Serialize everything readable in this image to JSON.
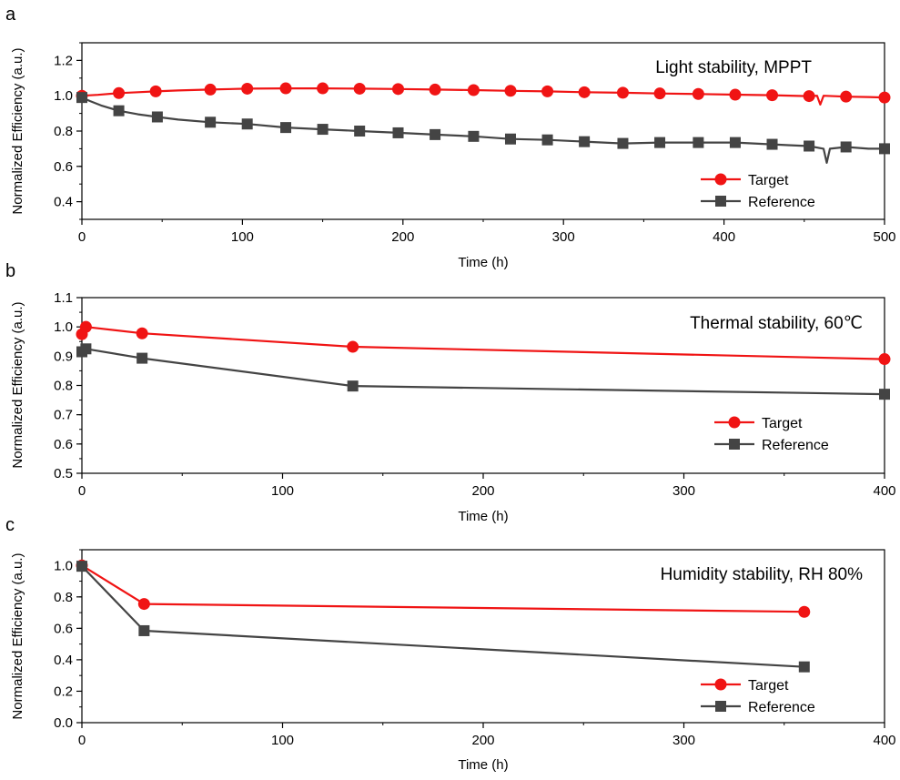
{
  "colors": {
    "target": "#f01414",
    "reference": "#444444",
    "axis": "#000000",
    "background": "#ffffff"
  },
  "chart_data": [
    {
      "type": "line",
      "panel_label": "a",
      "annotation": "Light stability, MPPT",
      "xlabel": "Time (h)",
      "ylabel": "Normalized Efficiency (a.u.)",
      "xlim": [
        0,
        500
      ],
      "ylim": [
        0.3,
        1.3
      ],
      "xticks": [
        0,
        100,
        200,
        300,
        400,
        500
      ],
      "yticks": [
        0.4,
        0.6,
        0.8,
        1.0,
        1.2
      ],
      "ytick_labels": [
        "0.4",
        "0.6",
        "0.8",
        "1.0",
        "1.2"
      ],
      "grid": false,
      "legend_position": "bottom-right",
      "series": [
        {
          "name": "Target",
          "color": "#f01414",
          "marker": "circle",
          "line": [
            [
              0,
              1.0
            ],
            [
              10,
              1.005
            ],
            [
              23,
              1.015
            ],
            [
              35,
              1.02
            ],
            [
              46,
              1.025
            ],
            [
              60,
              1.03
            ],
            [
              80,
              1.035
            ],
            [
              103,
              1.04
            ],
            [
              127,
              1.042
            ],
            [
              150,
              1.042
            ],
            [
              173,
              1.04
            ],
            [
              197,
              1.038
            ],
            [
              220,
              1.035
            ],
            [
              244,
              1.032
            ],
            [
              267,
              1.028
            ],
            [
              290,
              1.025
            ],
            [
              313,
              1.02
            ],
            [
              337,
              1.017
            ],
            [
              360,
              1.013
            ],
            [
              384,
              1.01
            ],
            [
              407,
              1.006
            ],
            [
              430,
              1.003
            ],
            [
              452,
              0.998
            ],
            [
              458,
              1.0
            ],
            [
              460,
              0.95
            ],
            [
              462,
              1.0
            ],
            [
              476,
              0.995
            ],
            [
              490,
              0.993
            ],
            [
              500,
              0.99
            ]
          ],
          "markers": [
            [
              0,
              1.0
            ],
            [
              23,
              1.015
            ],
            [
              46,
              1.025
            ],
            [
              80,
              1.035
            ],
            [
              103,
              1.04
            ],
            [
              127,
              1.042
            ],
            [
              150,
              1.042
            ],
            [
              173,
              1.04
            ],
            [
              197,
              1.038
            ],
            [
              220,
              1.035
            ],
            [
              244,
              1.032
            ],
            [
              267,
              1.028
            ],
            [
              290,
              1.025
            ],
            [
              313,
              1.02
            ],
            [
              337,
              1.017
            ],
            [
              360,
              1.013
            ],
            [
              384,
              1.01
            ],
            [
              407,
              1.006
            ],
            [
              430,
              1.003
            ],
            [
              453,
              0.998
            ],
            [
              476,
              0.995
            ],
            [
              500,
              0.99
            ]
          ]
        },
        {
          "name": "Reference",
          "color": "#444444",
          "marker": "square",
          "line": [
            [
              0,
              0.99
            ],
            [
              5,
              0.97
            ],
            [
              12,
              0.945
            ],
            [
              23,
              0.915
            ],
            [
              35,
              0.895
            ],
            [
              47,
              0.88
            ],
            [
              60,
              0.865
            ],
            [
              80,
              0.85
            ],
            [
              103,
              0.84
            ],
            [
              127,
              0.82
            ],
            [
              150,
              0.81
            ],
            [
              173,
              0.8
            ],
            [
              197,
              0.79
            ],
            [
              220,
              0.78
            ],
            [
              244,
              0.77
            ],
            [
              267,
              0.755
            ],
            [
              290,
              0.75
            ],
            [
              313,
              0.74
            ],
            [
              337,
              0.73
            ],
            [
              360,
              0.735
            ],
            [
              384,
              0.735
            ],
            [
              407,
              0.735
            ],
            [
              430,
              0.725
            ],
            [
              440,
              0.72
            ],
            [
              453,
              0.715
            ],
            [
              462,
              0.7
            ],
            [
              464,
              0.62
            ],
            [
              466,
              0.7
            ],
            [
              476,
              0.71
            ],
            [
              490,
              0.7
            ],
            [
              500,
              0.7
            ]
          ],
          "markers": [
            [
              0,
              0.99
            ],
            [
              23,
              0.915
            ],
            [
              47,
              0.88
            ],
            [
              80,
              0.85
            ],
            [
              103,
              0.84
            ],
            [
              127,
              0.82
            ],
            [
              150,
              0.81
            ],
            [
              173,
              0.8
            ],
            [
              197,
              0.79
            ],
            [
              220,
              0.78
            ],
            [
              244,
              0.77
            ],
            [
              267,
              0.755
            ],
            [
              290,
              0.75
            ],
            [
              313,
              0.74
            ],
            [
              337,
              0.73
            ],
            [
              360,
              0.735
            ],
            [
              384,
              0.735
            ],
            [
              407,
              0.735
            ],
            [
              430,
              0.725
            ],
            [
              453,
              0.715
            ],
            [
              476,
              0.71
            ],
            [
              500,
              0.7
            ]
          ]
        }
      ]
    },
    {
      "type": "line",
      "panel_label": "b",
      "annotation": "Thermal stability, 60℃",
      "xlabel": "Time (h)",
      "ylabel": "Normalized Efficiency (a.u.)",
      "xlim": [
        0,
        400
      ],
      "ylim": [
        0.5,
        1.1
      ],
      "xticks": [
        0,
        100,
        200,
        300,
        400
      ],
      "yticks": [
        0.5,
        0.6,
        0.7,
        0.8,
        0.9,
        1.0,
        1.1
      ],
      "ytick_labels": [
        "0.5",
        "0.6",
        "0.7",
        "0.8",
        "0.9",
        "1.0",
        "1.1"
      ],
      "grid": false,
      "legend_position": "bottom-right",
      "series": [
        {
          "name": "Target",
          "color": "#f01414",
          "marker": "circle",
          "line": [
            [
              0,
              0.975
            ],
            [
              2,
              1.0
            ],
            [
              30,
              0.978
            ],
            [
              135,
              0.932
            ],
            [
              400,
              0.89
            ]
          ],
          "markers": [
            [
              0,
              0.975
            ],
            [
              2,
              1.0
            ],
            [
              30,
              0.978
            ],
            [
              135,
              0.932
            ],
            [
              400,
              0.89
            ]
          ]
        },
        {
          "name": "Reference",
          "color": "#444444",
          "marker": "square",
          "line": [
            [
              0,
              0.915
            ],
            [
              2,
              0.925
            ],
            [
              30,
              0.893
            ],
            [
              135,
              0.798
            ],
            [
              400,
              0.77
            ]
          ],
          "markers": [
            [
              0,
              0.915
            ],
            [
              2,
              0.925
            ],
            [
              30,
              0.893
            ],
            [
              135,
              0.798
            ],
            [
              400,
              0.77
            ]
          ]
        }
      ]
    },
    {
      "type": "line",
      "panel_label": "c",
      "annotation": "Humidity stability, RH 80%",
      "xlabel": "Time (h)",
      "ylabel": "Normalized Efficiency (a.u.)",
      "xlim": [
        0,
        400
      ],
      "ylim": [
        0.0,
        1.1
      ],
      "xticks": [
        0,
        100,
        200,
        300,
        400
      ],
      "yticks": [
        0.0,
        0.2,
        0.4,
        0.6,
        0.8,
        1.0
      ],
      "ytick_labels": [
        "0.0",
        "0.2",
        "0.4",
        "0.6",
        "0.8",
        "1.0"
      ],
      "grid": false,
      "legend_position": "bottom-right",
      "series": [
        {
          "name": "Target",
          "color": "#f01414",
          "marker": "circle",
          "line": [
            [
              0,
              1.0
            ],
            [
              31,
              0.755
            ],
            [
              360,
              0.705
            ]
          ],
          "markers": [
            [
              0,
              1.0
            ],
            [
              31,
              0.755
            ],
            [
              360,
              0.705
            ]
          ]
        },
        {
          "name": "Reference",
          "color": "#444444",
          "marker": "square",
          "line": [
            [
              0,
              0.995
            ],
            [
              31,
              0.585
            ],
            [
              360,
              0.355
            ]
          ],
          "markers": [
            [
              0,
              0.995
            ],
            [
              31,
              0.585
            ],
            [
              360,
              0.355
            ]
          ]
        }
      ]
    }
  ]
}
